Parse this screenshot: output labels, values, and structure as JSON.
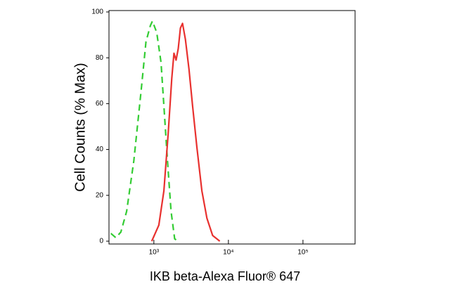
{
  "chart_data": {
    "type": "line",
    "x_label": "IKB beta-Alexa Fluor® 647",
    "y_label": "Cell Counts (% Max)",
    "x_scale": "log",
    "xlim": [
      250,
      500000
    ],
    "xticks": [
      {
        "value": 1000,
        "label": "10³"
      },
      {
        "value": 10000,
        "label": "10⁴"
      },
      {
        "value": 100000,
        "label": "10⁵"
      }
    ],
    "ylim": [
      0,
      100
    ],
    "yticks": [
      0,
      20,
      40,
      60,
      80,
      100
    ],
    "series": [
      {
        "color": "#33cc33",
        "dash": true,
        "x": [
          265,
          309,
          361,
          431,
          538,
          671,
          784,
          896,
          957,
          1093,
          1248,
          1364,
          1524,
          1702,
          1901,
          2123
        ],
        "values": [
          3.4,
          1.5,
          4,
          13,
          35,
          65,
          87,
          94,
          96,
          91,
          78,
          59,
          35,
          13,
          1,
          0
        ]
      },
      {
        "color": "#e8312f",
        "dash": false,
        "x": [
          936,
          1167,
          1364,
          1557,
          1738,
          1858,
          1986,
          2123,
          2270,
          2426,
          2649,
          2958,
          3304,
          3776,
          4406,
          5149,
          6142,
          7669
        ],
        "values": [
          0,
          7,
          22,
          47,
          71,
          82,
          79,
          84,
          93,
          95,
          88,
          75,
          59,
          41,
          22,
          10,
          2.5,
          0
        ]
      }
    ]
  }
}
